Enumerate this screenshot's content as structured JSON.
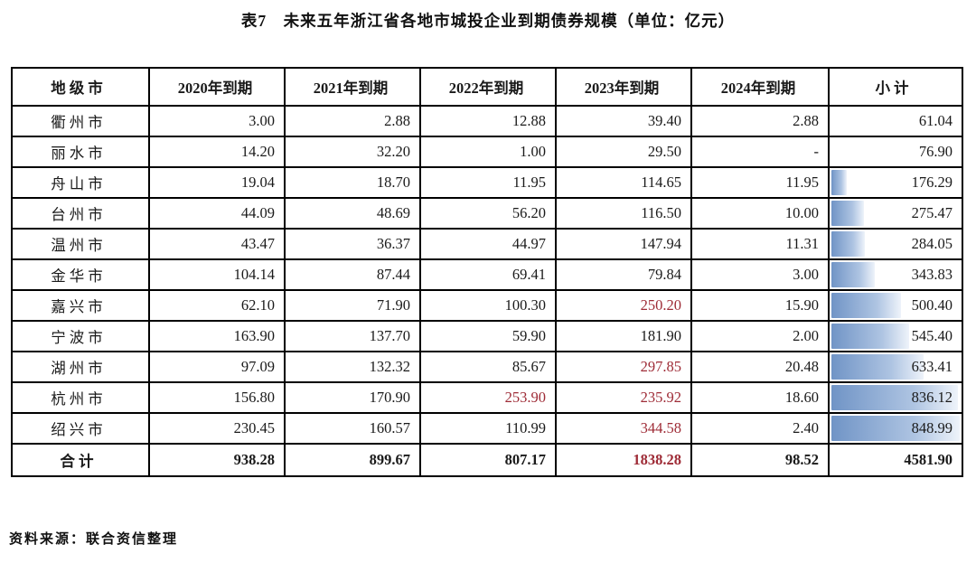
{
  "title": "表7　未来五年浙江省各地市城投企业到期债券规模（单位：亿元）",
  "source": "资料来源：联合资信整理",
  "colors": {
    "highlight_bg": "#f8c8cc",
    "highlight_text": "#9e2b36",
    "bar_start": "#7094c6",
    "bar_mid": "#aec4e2",
    "bar_end": "#eef3fa"
  },
  "table": {
    "headers": [
      "地级市",
      "2020年到期",
      "2021年到期",
      "2022年到期",
      "2023年到期",
      "2024年到期",
      "小计"
    ],
    "rows": [
      {
        "city": "衢州市",
        "values": [
          "3.00",
          "2.88",
          "12.88",
          "39.40",
          "2.88"
        ],
        "subtotal": "61.04",
        "highlight": []
      },
      {
        "city": "丽水市",
        "values": [
          "14.20",
          "32.20",
          "1.00",
          "29.50",
          "-"
        ],
        "subtotal": "76.90",
        "highlight": []
      },
      {
        "city": "舟山市",
        "values": [
          "19.04",
          "18.70",
          "11.95",
          "114.65",
          "11.95"
        ],
        "subtotal": "176.29",
        "highlight": []
      },
      {
        "city": "台州市",
        "values": [
          "44.09",
          "48.69",
          "56.20",
          "116.50",
          "10.00"
        ],
        "subtotal": "275.47",
        "highlight": []
      },
      {
        "city": "温州市",
        "values": [
          "43.47",
          "36.37",
          "44.97",
          "147.94",
          "11.31"
        ],
        "subtotal": "284.05",
        "highlight": []
      },
      {
        "city": "金华市",
        "values": [
          "104.14",
          "87.44",
          "69.41",
          "79.84",
          "3.00"
        ],
        "subtotal": "343.83",
        "highlight": []
      },
      {
        "city": "嘉兴市",
        "values": [
          "62.10",
          "71.90",
          "100.30",
          "250.20",
          "15.90"
        ],
        "subtotal": "500.40",
        "highlight": [
          3
        ]
      },
      {
        "city": "宁波市",
        "values": [
          "163.90",
          "137.70",
          "59.90",
          "181.90",
          "2.00"
        ],
        "subtotal": "545.40",
        "highlight": []
      },
      {
        "city": "湖州市",
        "values": [
          "97.09",
          "132.32",
          "85.67",
          "297.85",
          "20.48"
        ],
        "subtotal": "633.41",
        "highlight": [
          3
        ]
      },
      {
        "city": "杭州市",
        "values": [
          "156.80",
          "170.90",
          "253.90",
          "235.92",
          "18.60"
        ],
        "subtotal": "836.12",
        "highlight": [
          2,
          3
        ]
      },
      {
        "city": "绍兴市",
        "values": [
          "230.45",
          "160.57",
          "110.99",
          "344.58",
          "2.40"
        ],
        "subtotal": "848.99",
        "highlight": [
          3
        ]
      }
    ],
    "total": {
      "label": "合计",
      "values": [
        "938.28",
        "899.67",
        "807.17",
        "1838.28",
        "98.52"
      ],
      "subtotal": "4581.90",
      "highlight": [
        3
      ]
    }
  }
}
